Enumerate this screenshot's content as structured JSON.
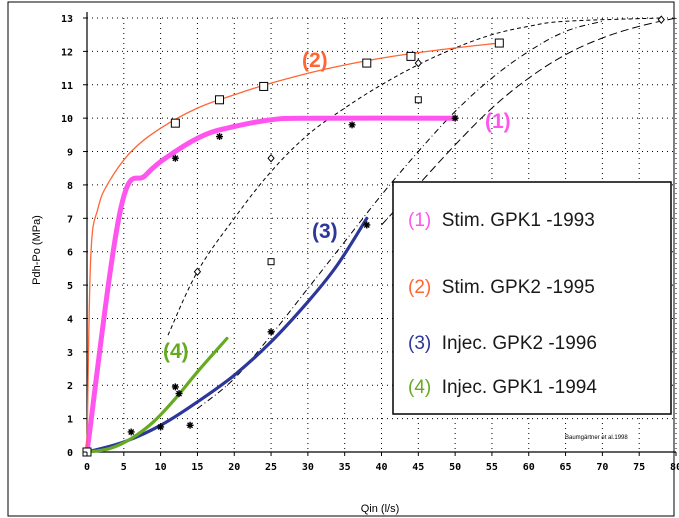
{
  "chart_data": {
    "type": "line",
    "xlabel": "Qin (l/s)",
    "ylabel": "Pdh-Po (MPa)",
    "xlim": [
      0,
      80
    ],
    "ylim": [
      0,
      13
    ],
    "x_ticks": [
      "0",
      "5",
      "10",
      "15",
      "20",
      "25",
      "30",
      "35",
      "40",
      "45",
      "50",
      "55",
      "60",
      "65",
      "70",
      "75",
      "80"
    ],
    "y_ticks": [
      "0",
      "1",
      "2",
      "3",
      "4",
      "5",
      "6",
      "7",
      "8",
      "9",
      "10",
      "11",
      "12",
      "13"
    ],
    "grid": true,
    "legend_position": "center-right",
    "series": [
      {
        "name": "(1) Stim. GPK1 -1993",
        "label": "(1)",
        "desc": "Stim. GPK1 -1993",
        "color": "#ff55ee",
        "fit": [
          [
            0,
            0
          ],
          [
            4.5,
            7.2
          ],
          [
            8,
            8.3
          ],
          [
            12,
            9.0
          ],
          [
            16,
            9.5
          ],
          [
            20,
            9.75
          ],
          [
            25,
            9.95
          ],
          [
            30,
            10.0
          ],
          [
            50,
            10.0
          ]
        ],
        "points": [
          [
            12,
            8.8
          ],
          [
            18,
            9.45
          ],
          [
            36,
            9.8
          ],
          [
            50,
            10.0
          ]
        ],
        "marker": "star"
      },
      {
        "name": "(2) Stim. GPK2 -1995",
        "label": "(2)",
        "desc": "Stim. GPK2 -1995",
        "color": "#ff6633",
        "fit": [
          [
            0,
            0
          ],
          [
            0.5,
            5.8
          ],
          [
            1.5,
            7.3
          ],
          [
            3,
            8.1
          ],
          [
            6,
            9.0
          ],
          [
            10,
            9.7
          ],
          [
            15,
            10.3
          ],
          [
            20,
            10.7
          ],
          [
            25,
            11.05
          ],
          [
            32,
            11.45
          ],
          [
            40,
            11.8
          ],
          [
            48,
            12.05
          ],
          [
            56,
            12.25
          ]
        ],
        "points": [
          [
            12,
            9.85
          ],
          [
            18,
            10.55
          ],
          [
            24,
            10.95
          ],
          [
            38,
            11.65
          ],
          [
            44,
            11.85
          ],
          [
            56,
            12.25
          ]
        ],
        "marker": "square"
      },
      {
        "name": "(3) Injec. GPK2 -1996",
        "label": "(3)",
        "desc": "Injec. GPK2 -1996",
        "color": "#2d3799",
        "fit": [
          [
            0,
            0
          ],
          [
            5,
            0.3
          ],
          [
            10,
            0.8
          ],
          [
            15,
            1.5
          ],
          [
            20,
            2.3
          ],
          [
            25,
            3.3
          ],
          [
            30,
            4.5
          ],
          [
            34,
            5.6
          ],
          [
            38,
            7.0
          ]
        ],
        "points": [
          [
            10,
            0.75
          ],
          [
            14,
            0.8
          ],
          [
            25,
            3.6
          ],
          [
            38,
            6.8
          ]
        ],
        "marker": "star"
      },
      {
        "name": "(4) Injec. GPK1 -1994",
        "label": "(4)",
        "desc": "Injec. GPK1 -1994",
        "color": "#66aa22",
        "fit": [
          [
            0,
            0
          ],
          [
            3,
            0.1
          ],
          [
            6,
            0.4
          ],
          [
            9,
            0.9
          ],
          [
            12,
            1.6
          ],
          [
            15,
            2.4
          ],
          [
            19,
            3.4
          ]
        ],
        "points": [
          [
            6,
            0.6
          ],
          [
            12,
            1.95
          ],
          [
            12.5,
            1.75
          ]
        ],
        "marker": "star"
      }
    ],
    "dashed_curves": [
      {
        "style": "dashed",
        "fit": [
          [
            11,
            3.5
          ],
          [
            15,
            5.4
          ],
          [
            20,
            7.0
          ],
          [
            25,
            8.4
          ],
          [
            30,
            9.5
          ],
          [
            35,
            10.3
          ],
          [
            40,
            11.0
          ],
          [
            45,
            11.6
          ],
          [
            50,
            12.1
          ],
          [
            55,
            12.5
          ],
          [
            60,
            12.75
          ],
          [
            65,
            12.9
          ],
          [
            78,
            13.0
          ]
        ],
        "points": [
          [
            15,
            5.4
          ],
          [
            25,
            8.8
          ],
          [
            45,
            11.65
          ],
          [
            78,
            12.95
          ]
        ],
        "marker": "diamond"
      },
      {
        "style": "dashdot",
        "fit": [
          [
            15,
            1.3
          ],
          [
            20,
            2.2
          ],
          [
            25,
            3.5
          ],
          [
            30,
            4.9
          ],
          [
            35,
            6.3
          ],
          [
            40,
            7.7
          ],
          [
            45,
            9.0
          ],
          [
            50,
            10.2
          ],
          [
            55,
            11.2
          ],
          [
            60,
            12.0
          ],
          [
            65,
            12.6
          ],
          [
            70,
            12.9
          ]
        ],
        "points": [
          [
            25,
            5.7
          ],
          [
            45,
            10.55
          ]
        ],
        "marker": "square-dot"
      },
      {
        "style": "dashed-long",
        "fit": [
          [
            40,
            6.8
          ],
          [
            45,
            8.0
          ],
          [
            50,
            9.2
          ],
          [
            55,
            10.3
          ],
          [
            60,
            11.2
          ],
          [
            65,
            11.9
          ],
          [
            70,
            12.4
          ],
          [
            75,
            12.75
          ],
          [
            80,
            13.0
          ]
        ],
        "points": [],
        "marker": "none"
      }
    ],
    "credit": "Baumgärtner et al.1998"
  }
}
